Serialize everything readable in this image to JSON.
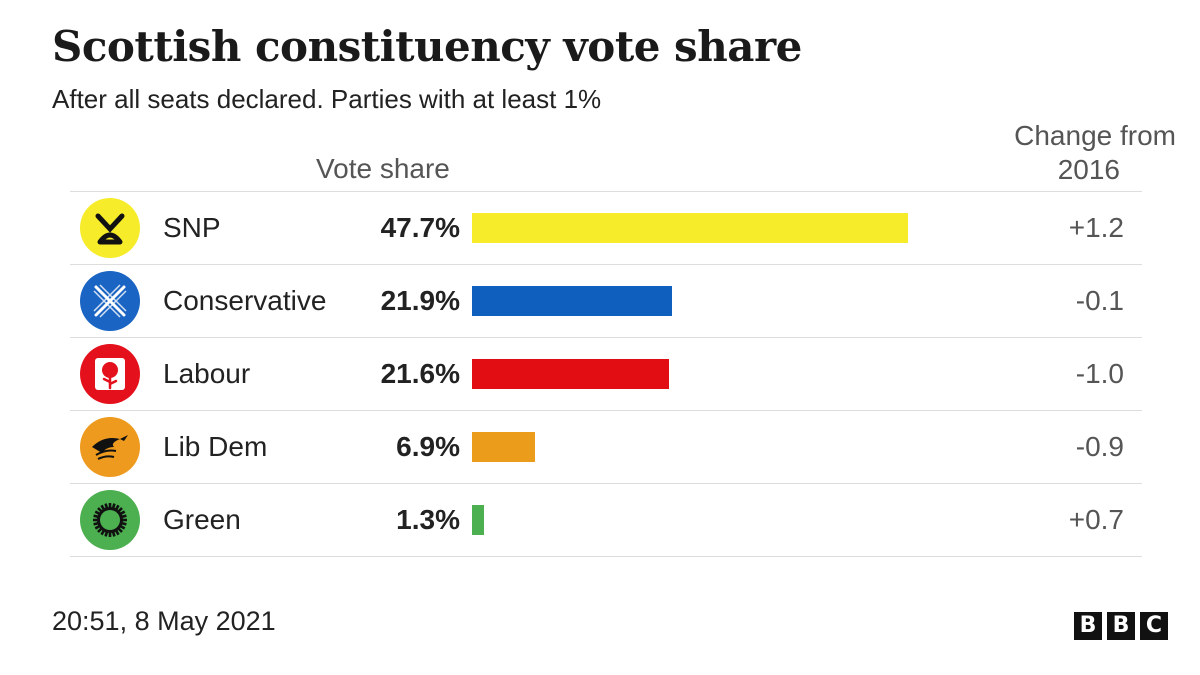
{
  "title": "Scottish constituency vote share",
  "subtitle": "After all seats declared. Parties with at least 1%",
  "column_headers": {
    "vote_share": "Vote share",
    "change_line1": "Change from",
    "change_line2": "2016"
  },
  "chart_data": {
    "type": "bar",
    "orientation": "horizontal",
    "categories": [
      "SNP",
      "Conservative",
      "Labour",
      "Lib Dem",
      "Green"
    ],
    "values": [
      47.7,
      21.9,
      21.6,
      6.9,
      1.3
    ],
    "value_labels": [
      "47.7%",
      "21.9%",
      "21.6%",
      "6.9%",
      "1.3%"
    ],
    "change_from_2016": [
      "+1.2",
      "-0.1",
      "-1.0",
      "-0.9",
      "+0.7"
    ],
    "colors": [
      "#f6ec2a",
      "#0f5fbe",
      "#e20d12",
      "#ec9c1b",
      "#4caf50"
    ],
    "logo_colors": [
      "#f6ec2a",
      "#1a64c4",
      "#e4101b",
      "#ee9a1e",
      "#4caf50"
    ],
    "logo_icons": [
      "snp-logo-icon",
      "conservative-saltire-icon",
      "labour-rose-icon",
      "libdem-bird-icon",
      "green-sunflower-icon"
    ]
  },
  "footer": {
    "timestamp": "20:51, 8 May 2021",
    "brand": [
      "B",
      "B",
      "C"
    ]
  }
}
